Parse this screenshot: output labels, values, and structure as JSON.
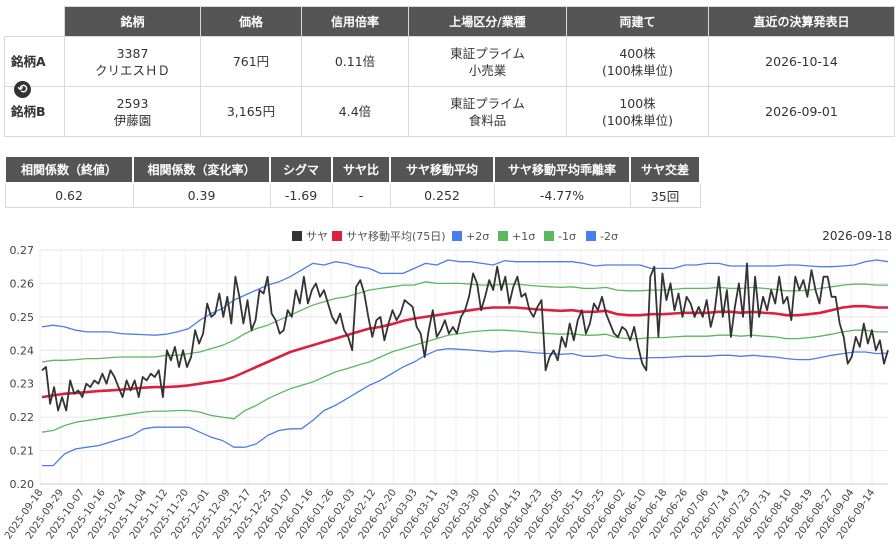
{
  "pair_table": {
    "headers": [
      "銘柄",
      "価格",
      "信用倍率",
      "上場区分/業種",
      "両建て",
      "直近の決算発表日"
    ],
    "rows": [
      {
        "label": "銘柄A",
        "code": "3387",
        "name": "クリエスＨＤ",
        "price": "761円",
        "margin_ratio": "0.11倍",
        "market": "東証プライム",
        "sector": "小売業",
        "hedge": "400株",
        "unit": "(100株単位)",
        "earnings_date": "2026-10-14"
      },
      {
        "label": "銘柄B",
        "code": "2593",
        "name": "伊藤園",
        "price": "3,165円",
        "margin_ratio": "4.4倍",
        "market": "東証プライム",
        "sector": "食料品",
        "hedge": "100株",
        "unit": "(100株単位)",
        "earnings_date": "2026-09-01"
      }
    ],
    "swap_icon": "swap-icon"
  },
  "stats_table": {
    "headers": [
      "相関係数（終値）",
      "相関係数（変化率）",
      "シグマ",
      "サヤ比",
      "サヤ移動平均",
      "サヤ移動平均乖離率",
      "サヤ交差"
    ],
    "values": [
      "0.62",
      "0.39",
      "-1.69",
      "-",
      "0.252",
      "-4.77%",
      "35回"
    ]
  },
  "chart_data": {
    "type": "line",
    "date_label": "2026-09-18",
    "legend": [
      {
        "name": "サヤ",
        "color": "#333333"
      },
      {
        "name": "サヤ移動平均(75日)",
        "color": "#dc2040"
      },
      {
        "name": "+2σ",
        "color": "#4a7ee8"
      },
      {
        "name": "+1σ",
        "color": "#5cb85c"
      },
      {
        "name": "-1σ",
        "color": "#5cb85c"
      },
      {
        "name": "-2σ",
        "color": "#4a7ee8"
      }
    ],
    "legend_position": "top-center",
    "ylim": [
      0.2,
      0.27
    ],
    "yticks": [
      "0.20",
      "0.21",
      "0.22",
      "0.23",
      "0.24",
      "0.25",
      "0.26",
      "0.27"
    ],
    "xticks": [
      "2025-09-18",
      "2025-09-29",
      "2025-10-07",
      "2025-10-16",
      "2025-10-24",
      "2025-11-04",
      "2025-11-12",
      "2025-11-20",
      "2025-12-01",
      "2025-12-09",
      "2025-12-17",
      "2025-12-25",
      "2026-01-07",
      "2026-01-16",
      "2026-01-26",
      "2026-02-03",
      "2026-02-12",
      "2026-02-20",
      "2026-03-03",
      "2026-03-11",
      "2026-03-19",
      "2026-03-30",
      "2026-04-07",
      "2026-04-15",
      "2026-04-23",
      "2026-05-05",
      "2026-05-15",
      "2026-05-25",
      "2026-06-02",
      "2026-06-10",
      "2026-06-18",
      "2026-06-26",
      "2026-07-06",
      "2026-07-14",
      "2026-07-23",
      "2026-07-31",
      "2026-08-10",
      "2026-08-19",
      "2026-08-27",
      "2026-09-04",
      "2026-09-14"
    ],
    "grid": true,
    "series": [
      {
        "name": "サヤ",
        "values": [
          0.234,
          0.235,
          0.224,
          0.229,
          0.222,
          0.226,
          0.222,
          0.231,
          0.227,
          0.228,
          0.226,
          0.23,
          0.229,
          0.231,
          0.23,
          0.233,
          0.23,
          0.234,
          0.232,
          0.229,
          0.226,
          0.231,
          0.228,
          0.231,
          0.226,
          0.232,
          0.231,
          0.233,
          0.232,
          0.234,
          0.226,
          0.24,
          0.237,
          0.241,
          0.235,
          0.24,
          0.235,
          0.238,
          0.246,
          0.242,
          0.245,
          0.254,
          0.25,
          0.251,
          0.257,
          0.25,
          0.256,
          0.248,
          0.262,
          0.256,
          0.248,
          0.255,
          0.246,
          0.249,
          0.258,
          0.257,
          0.262,
          0.251,
          0.249,
          0.245,
          0.246,
          0.252,
          0.25,
          0.258,
          0.254,
          0.262,
          0.254,
          0.258,
          0.26,
          0.256,
          0.258,
          0.254,
          0.25,
          0.248,
          0.251,
          0.246,
          0.244,
          0.24,
          0.259,
          0.261,
          0.257,
          0.25,
          0.244,
          0.249,
          0.25,
          0.243,
          0.248,
          0.252,
          0.249,
          0.251,
          0.255,
          0.254,
          0.253,
          0.247,
          0.245,
          0.238,
          0.246,
          0.252,
          0.244,
          0.246,
          0.249,
          0.245,
          0.247,
          0.245,
          0.25,
          0.252,
          0.256,
          0.263,
          0.26,
          0.252,
          0.256,
          0.261,
          0.258,
          0.265,
          0.258,
          0.262,
          0.254,
          0.259,
          0.262,
          0.256,
          0.257,
          0.252,
          0.25,
          0.253,
          0.255,
          0.234,
          0.238,
          0.24,
          0.237,
          0.244,
          0.241,
          0.248,
          0.243,
          0.249,
          0.252,
          0.245,
          0.248,
          0.254,
          0.252,
          0.256,
          0.251,
          0.248,
          0.245,
          0.244,
          0.247,
          0.246,
          0.243,
          0.247,
          0.241,
          0.236,
          0.234,
          0.262,
          0.265,
          0.244,
          0.263,
          0.255,
          0.26,
          0.252,
          0.257,
          0.25,
          0.256,
          0.254,
          0.25,
          0.253,
          0.25,
          0.255,
          0.247,
          0.252,
          0.262,
          0.25,
          0.258,
          0.244,
          0.253,
          0.26,
          0.25,
          0.266,
          0.244,
          0.262,
          0.25,
          0.256,
          0.252,
          0.258,
          0.254,
          0.262,
          0.254,
          0.256,
          0.249,
          0.262,
          0.258,
          0.261,
          0.256,
          0.264,
          0.258,
          0.254,
          0.262,
          0.262,
          0.256,
          0.256,
          0.248,
          0.244,
          0.236,
          0.238,
          0.244,
          0.241,
          0.248,
          0.242,
          0.246,
          0.24,
          0.243,
          0.236,
          0.24
        ]
      },
      {
        "name": "サヤ移動平均(75日)",
        "values": [
          0.226,
          0.2265,
          0.227,
          0.2272,
          0.2275,
          0.2278,
          0.228,
          0.2282,
          0.2285,
          0.2288,
          0.229,
          0.229,
          0.2292,
          0.2295,
          0.23,
          0.2305,
          0.231,
          0.232,
          0.2335,
          0.235,
          0.2365,
          0.238,
          0.2395,
          0.2405,
          0.2415,
          0.2425,
          0.2435,
          0.2445,
          0.2455,
          0.2465,
          0.247,
          0.2478,
          0.2488,
          0.2495,
          0.25,
          0.2505,
          0.251,
          0.2515,
          0.252,
          0.2525,
          0.2528,
          0.2528,
          0.2528,
          0.2525,
          0.2522,
          0.252,
          0.2518,
          0.252,
          0.2515,
          0.2515,
          0.2518,
          0.2508,
          0.2505,
          0.2505,
          0.2508,
          0.2508,
          0.251,
          0.2512,
          0.2512,
          0.2512,
          0.2515,
          0.2515,
          0.2512,
          0.2515,
          0.2512,
          0.251,
          0.2505,
          0.2505,
          0.2508,
          0.2512,
          0.252,
          0.2528,
          0.2532,
          0.2532,
          0.2528,
          0.2528
        ]
      },
      {
        "name": "+2σ",
        "values": [
          0.247,
          0.2475,
          0.247,
          0.246,
          0.2455,
          0.2455,
          0.2455,
          0.245,
          0.2448,
          0.2447,
          0.2445,
          0.2448,
          0.2455,
          0.2465,
          0.249,
          0.251,
          0.2525,
          0.255,
          0.2565,
          0.258,
          0.2595,
          0.2605,
          0.262,
          0.264,
          0.266,
          0.2655,
          0.2665,
          0.266,
          0.265,
          0.2645,
          0.263,
          0.263,
          0.263,
          0.2645,
          0.266,
          0.2655,
          0.267,
          0.2665,
          0.2665,
          0.266,
          0.2655,
          0.2668,
          0.2665,
          0.2665,
          0.2665,
          0.2665,
          0.2665,
          0.2665,
          0.266,
          0.2652,
          0.2655,
          0.2655,
          0.2655,
          0.2655,
          0.2645,
          0.2645,
          0.2645,
          0.2655,
          0.2655,
          0.266,
          0.266,
          0.2652,
          0.2652,
          0.2652,
          0.2652,
          0.2652,
          0.2655,
          0.2655,
          0.2652,
          0.265,
          0.265,
          0.2652,
          0.2655,
          0.2665,
          0.267,
          0.2665
        ]
      },
      {
        "name": "+1σ",
        "values": [
          0.2365,
          0.237,
          0.237,
          0.2372,
          0.2375,
          0.2375,
          0.2378,
          0.238,
          0.238,
          0.238,
          0.238,
          0.2385,
          0.2385,
          0.239,
          0.2395,
          0.2405,
          0.2415,
          0.243,
          0.245,
          0.2465,
          0.2475,
          0.249,
          0.2505,
          0.252,
          0.2535,
          0.2545,
          0.2555,
          0.256,
          0.257,
          0.258,
          0.2585,
          0.259,
          0.2595,
          0.2595,
          0.2605,
          0.26,
          0.26,
          0.26,
          0.2598,
          0.2595,
          0.2595,
          0.2598,
          0.2598,
          0.2595,
          0.2592,
          0.259,
          0.2588,
          0.259,
          0.2585,
          0.2585,
          0.2588,
          0.258,
          0.2578,
          0.2578,
          0.258,
          0.258,
          0.2582,
          0.2585,
          0.2585,
          0.2585,
          0.2588,
          0.2585,
          0.2585,
          0.2588,
          0.2585,
          0.2582,
          0.2578,
          0.2578,
          0.258,
          0.2585,
          0.259,
          0.2595,
          0.2598,
          0.2598,
          0.2595,
          0.2595
        ]
      },
      {
        "name": "-1σ",
        "values": [
          0.2155,
          0.216,
          0.2175,
          0.2185,
          0.219,
          0.2195,
          0.22,
          0.2205,
          0.221,
          0.2215,
          0.2218,
          0.2218,
          0.222,
          0.222,
          0.2215,
          0.2205,
          0.22,
          0.2195,
          0.222,
          0.2235,
          0.2255,
          0.227,
          0.2285,
          0.2295,
          0.2305,
          0.232,
          0.2335,
          0.2345,
          0.2355,
          0.2365,
          0.238,
          0.2395,
          0.2405,
          0.2415,
          0.2425,
          0.2435,
          0.2445,
          0.245,
          0.2455,
          0.2458,
          0.246,
          0.246,
          0.2458,
          0.2455,
          0.2452,
          0.245,
          0.2448,
          0.245,
          0.2445,
          0.2445,
          0.2448,
          0.2438,
          0.2435,
          0.2435,
          0.2438,
          0.2438,
          0.244,
          0.2442,
          0.2442,
          0.2442,
          0.2445,
          0.2445,
          0.2442,
          0.2445,
          0.2442,
          0.244,
          0.2435,
          0.2435,
          0.2438,
          0.2442,
          0.2448,
          0.2455,
          0.246,
          0.246,
          0.2455,
          0.2455
        ]
      },
      {
        "name": "-2σ",
        "values": [
          0.2055,
          0.2055,
          0.209,
          0.2105,
          0.211,
          0.2115,
          0.2125,
          0.2135,
          0.2145,
          0.2165,
          0.217,
          0.217,
          0.217,
          0.217,
          0.2155,
          0.214,
          0.213,
          0.211,
          0.211,
          0.212,
          0.2145,
          0.216,
          0.2165,
          0.2165,
          0.219,
          0.222,
          0.2235,
          0.2255,
          0.2275,
          0.2295,
          0.231,
          0.233,
          0.235,
          0.2365,
          0.2385,
          0.24,
          0.2405,
          0.2403,
          0.2401,
          0.2398,
          0.2395,
          0.2398,
          0.2398,
          0.2395,
          0.2392,
          0.239,
          0.2388,
          0.239,
          0.2382,
          0.2382,
          0.2386,
          0.2378,
          0.2375,
          0.2375,
          0.2378,
          0.2378,
          0.238,
          0.2382,
          0.2382,
          0.2382,
          0.2385,
          0.2385,
          0.2382,
          0.2385,
          0.2382,
          0.238,
          0.2375,
          0.2372,
          0.2372,
          0.2378,
          0.2385,
          0.239,
          0.2395,
          0.2395,
          0.239,
          0.2392
        ]
      }
    ]
  }
}
